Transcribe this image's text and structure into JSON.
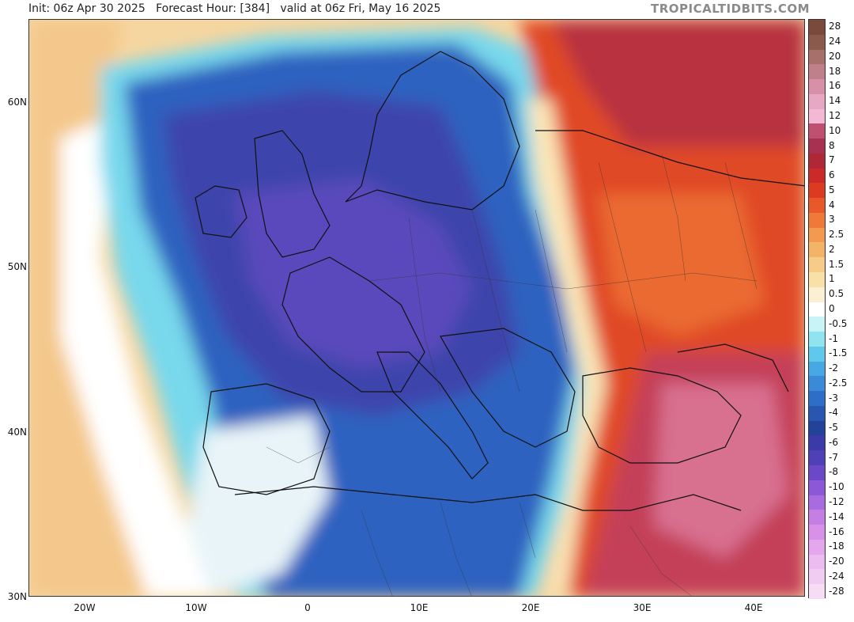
{
  "header": {
    "init_text": "Init: 06z Apr 30 2025   Forecast Hour: [384]   valid at 06z Fri, May 16 2025",
    "brand": "TROPICALTIDBITS.COM"
  },
  "map": {
    "lat_labels": [
      "60N",
      "50N",
      "40N",
      "30N"
    ],
    "lon_labels": [
      "20W",
      "10W",
      "0",
      "10E",
      "20E",
      "30E",
      "40E"
    ]
  },
  "legend": {
    "labels": [
      "28",
      "24",
      "20",
      "18",
      "16",
      "14",
      "12",
      "10",
      "8",
      "7",
      "6",
      "5",
      "4",
      "3",
      "2.5",
      "2",
      "1.5",
      "1",
      "0.5",
      "0",
      "-0.5",
      "-1",
      "-1.5",
      "-2",
      "-2.5",
      "-3",
      "-4",
      "-5",
      "-6",
      "-7",
      "-8",
      "-10",
      "-12",
      "-14",
      "-16",
      "-18",
      "-20",
      "-24",
      "-28"
    ],
    "colors": [
      "#7a4a3c",
      "#8a5a4c",
      "#a8706a",
      "#c0808a",
      "#d890a8",
      "#e8a8c4",
      "#f4b8d4",
      "#c05070",
      "#a83050",
      "#b02838",
      "#cc2a28",
      "#dd3a22",
      "#e8582a",
      "#f07838",
      "#f39a50",
      "#f4b468",
      "#f6cc88",
      "#f8e0a8",
      "#fbf0d4",
      "#ffffff",
      "#c8f4f8",
      "#90e4f0",
      "#60c8ec",
      "#48a8e4",
      "#3a8ad8",
      "#2e6ec8",
      "#2856b0",
      "#23429a",
      "#3a3aa8",
      "#5040b8",
      "#6a48c8",
      "#8c58d8",
      "#a86ce0",
      "#c47ee4",
      "#d890e8",
      "#e4a6ec",
      "#ecbcf0",
      "#f0ccf2",
      "#f6dcf4"
    ]
  }
}
